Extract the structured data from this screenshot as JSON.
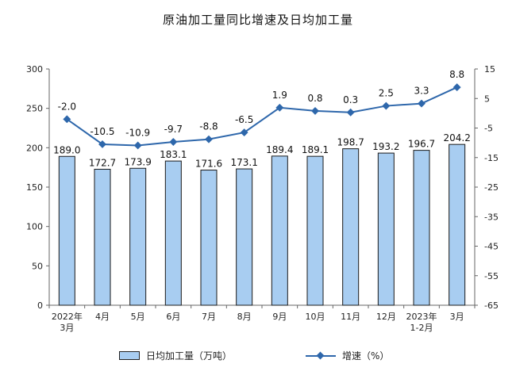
{
  "chart_data": {
    "type": "bar+line",
    "title": "原油加工量同比增速及日均加工量",
    "categories": [
      {
        "line1": "2022年",
        "line2": "3月"
      },
      {
        "line1": "4月",
        "line2": ""
      },
      {
        "line1": "5月",
        "line2": ""
      },
      {
        "line1": "6月",
        "line2": ""
      },
      {
        "line1": "7月",
        "line2": ""
      },
      {
        "line1": "8月",
        "line2": ""
      },
      {
        "line1": "9月",
        "line2": ""
      },
      {
        "line1": "10月",
        "line2": ""
      },
      {
        "line1": "11月",
        "line2": ""
      },
      {
        "line1": "12月",
        "line2": ""
      },
      {
        "line1": "2023年",
        "line2": "1-2月"
      },
      {
        "line1": "3月",
        "line2": ""
      }
    ],
    "series": [
      {
        "name": "日均加工量（万吨）",
        "type": "bar",
        "axis": "left",
        "values": [
          189.0,
          172.7,
          173.9,
          183.1,
          171.6,
          173.1,
          189.4,
          189.1,
          198.7,
          193.2,
          196.7,
          204.2
        ],
        "labels": [
          "189.0",
          "172.7",
          "173.9",
          "183.1",
          "171.6",
          "173.1",
          "189.4",
          "189.1",
          "198.7",
          "193.2",
          "196.7",
          "204.2"
        ],
        "color": "#a8cdf1"
      },
      {
        "name": "增速（%）",
        "type": "line",
        "axis": "right",
        "values": [
          -2.0,
          -10.5,
          -10.9,
          -9.7,
          -8.8,
          -6.5,
          1.9,
          0.8,
          0.3,
          2.5,
          3.3,
          8.8
        ],
        "labels": [
          "-2.0",
          "-10.5",
          "-10.9",
          "-9.7",
          "-8.8",
          "-6.5",
          "1.9",
          "0.8",
          "0.3",
          "2.5",
          "3.3",
          "8.8"
        ],
        "color": "#2e67ab"
      }
    ],
    "y_left": {
      "min": 0,
      "max": 300,
      "ticks": [
        "0",
        "50",
        "100",
        "150",
        "200",
        "250",
        "300"
      ]
    },
    "y_right": {
      "min": -65,
      "max": 15,
      "ticks": [
        "-65",
        "-55",
        "-45",
        "-35",
        "-25",
        "-15",
        "-5",
        "5",
        "15"
      ]
    },
    "grid": false,
    "legend_position": "bottom"
  }
}
